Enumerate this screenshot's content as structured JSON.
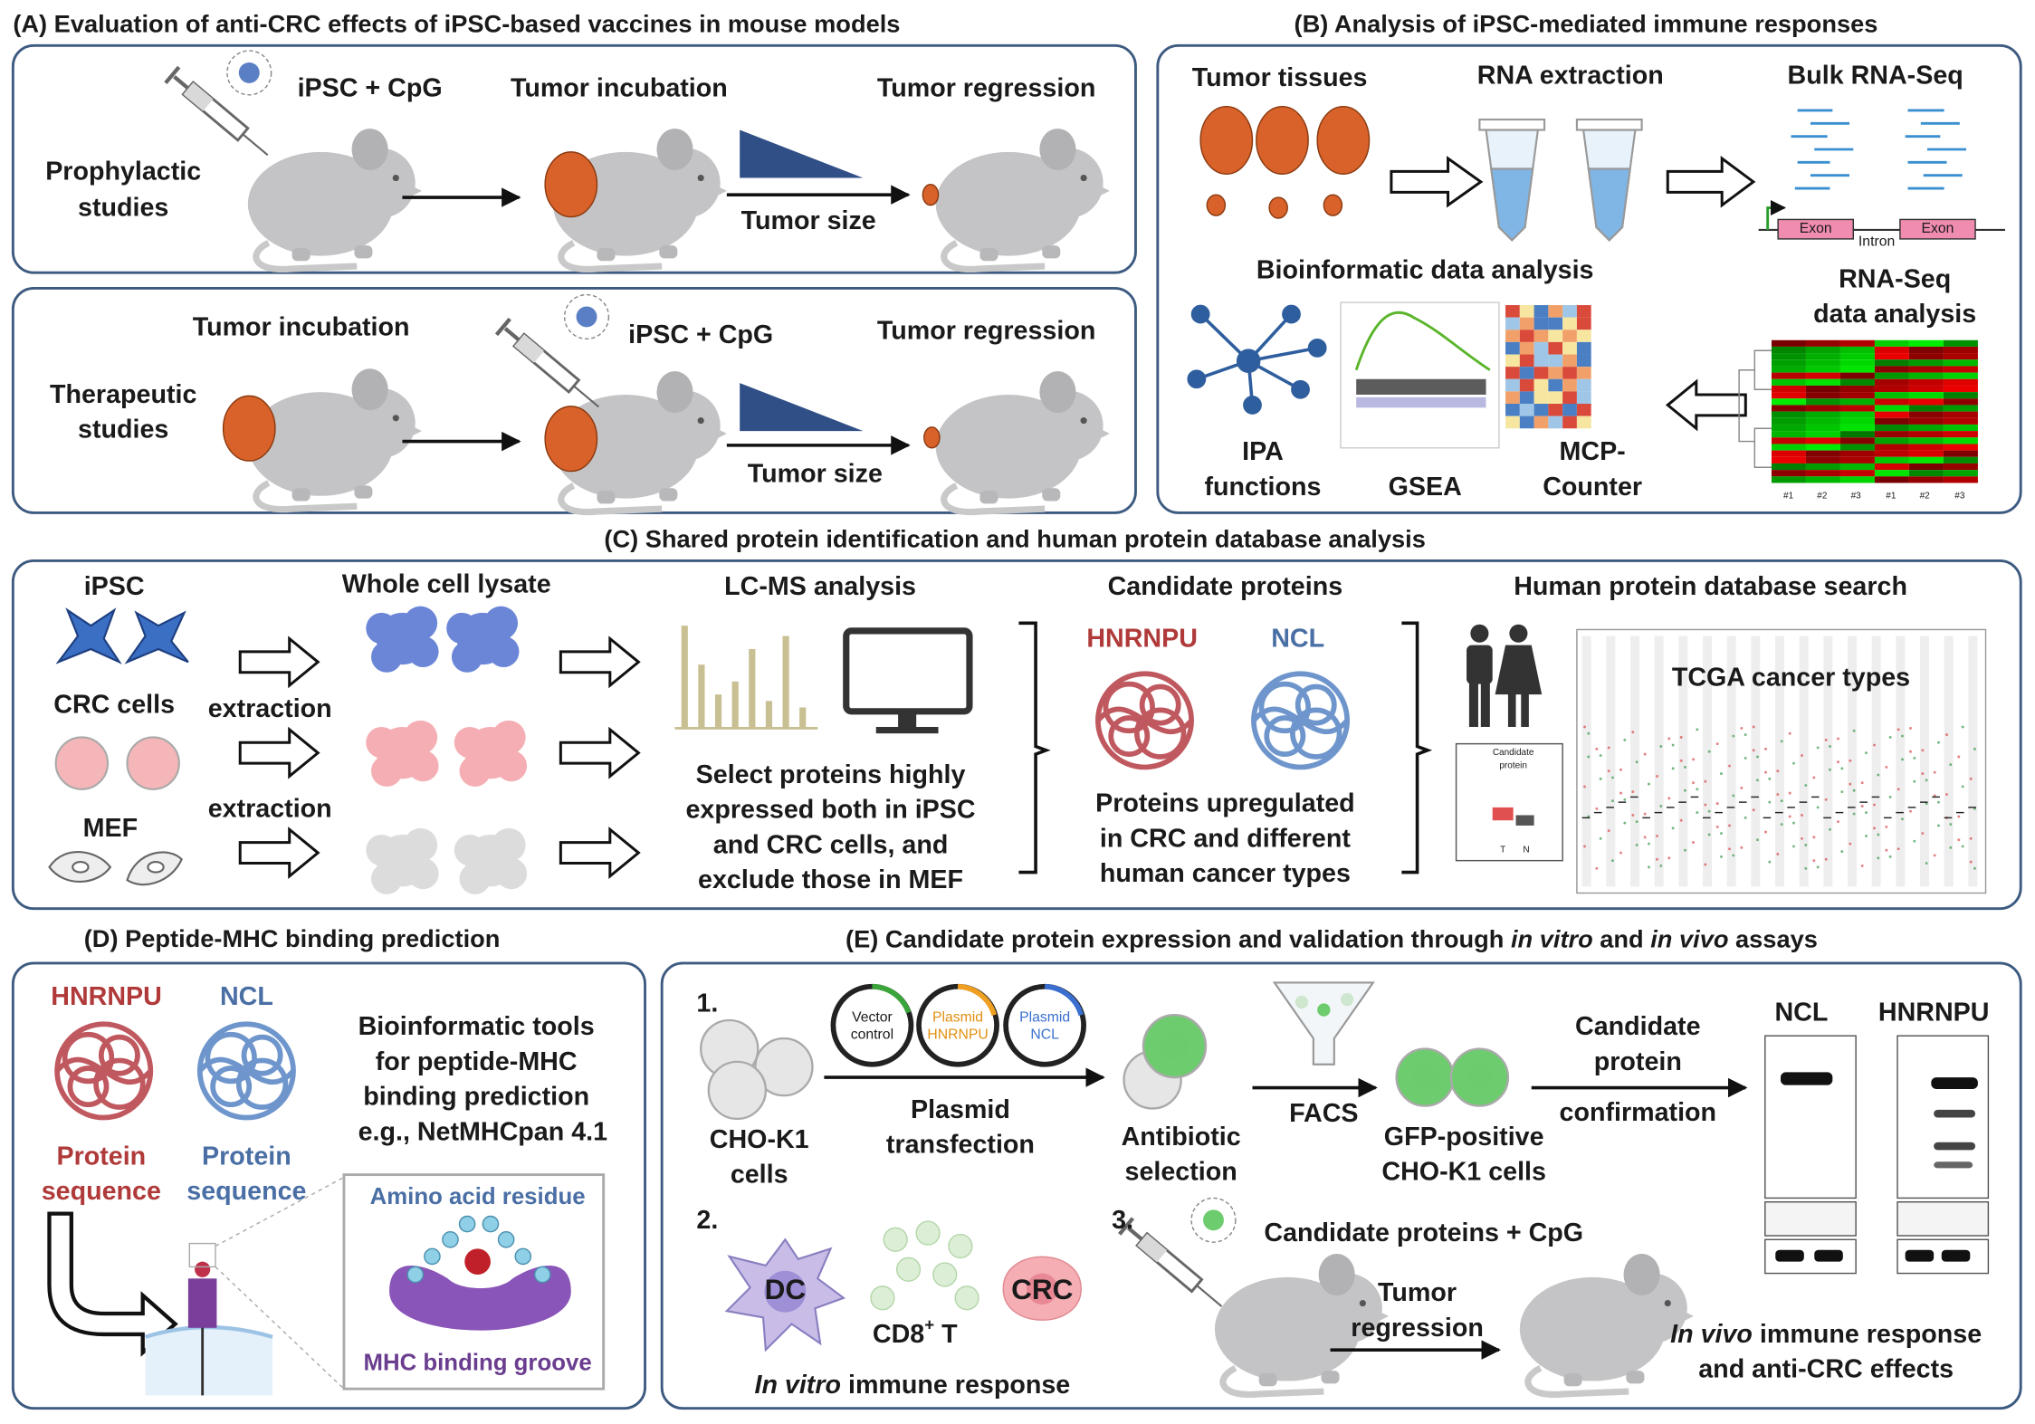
{
  "panel_a": {
    "title": "(A) Evaluation of anti-CRC effects of iPSC-based vaccines in mouse models",
    "prophylactic": {
      "label": [
        "Prophylactic",
        "studies"
      ],
      "injection": "iPSC + CpG",
      "incubation": "Tumor incubation",
      "regression": "Tumor regression",
      "tumor_size": "Tumor size"
    },
    "therapeutic": {
      "label": [
        "Therapeutic",
        "studies"
      ],
      "incubation": "Tumor incubation",
      "injection": "iPSC + CpG",
      "regression": "Tumor regression",
      "tumor_size": "Tumor size"
    }
  },
  "panel_b": {
    "title": "(B) Analysis of iPSC-mediated immune responses",
    "tumor_tissues": "Tumor tissues",
    "rna_extraction": "RNA extraction",
    "bulk_rna_seq": "Bulk RNA-Seq",
    "gene_labels": [
      "Exon",
      "Intron",
      "Exon"
    ],
    "bioinformatic": "Bioinformatic data analysis",
    "rna_seq_analysis": [
      "RNA-Seq",
      "data analysis"
    ],
    "ipa": [
      "IPA",
      "functions"
    ],
    "gsea": "GSEA",
    "mcp": [
      "MCP-",
      "Counter"
    ],
    "heatmap_columns": [
      "#1",
      "#2",
      "#3",
      "#1",
      "#2",
      "#3"
    ]
  },
  "panel_c": {
    "title": "(C) Shared protein identification and human protein database analysis",
    "sources": [
      "iPSC",
      "CRC cells",
      "MEF"
    ],
    "extraction": [
      "extraction",
      "extraction"
    ],
    "lysate": "Whole cell lysate",
    "lcms": "LC-MS analysis",
    "selection": [
      "Select proteins highly",
      "expressed both in iPSC",
      "and CRC cells, and",
      "exclude those in MEF"
    ],
    "candidates": "Candidate proteins",
    "protein_names": [
      "HNRNPU",
      "NCL"
    ],
    "upregulated": [
      "Proteins upregulated",
      "in CRC and different",
      "human cancer types"
    ],
    "database": "Human protein database search",
    "tcga": "TCGA cancer types",
    "boxplot": {
      "title": [
        "Candidate",
        "protein"
      ],
      "groups": [
        "T",
        "N"
      ]
    }
  },
  "panel_d": {
    "title": "(D) Peptide-MHC binding prediction",
    "protein_names": [
      "HNRNPU",
      "NCL"
    ],
    "tools": [
      "Bioinformatic tools",
      "for peptide-MHC",
      "binding prediction",
      "e.g., NetMHCpan 4.1"
    ],
    "sequence": [
      "Protein",
      "sequence"
    ],
    "residue": "Amino acid residue",
    "groove": "MHC binding groove"
  },
  "panel_e": {
    "title": [
      "(E) Candidate protein expression and validation through ",
      "in vitro",
      " and ",
      "in vivo",
      " assays"
    ],
    "steps": [
      "1.",
      "2.",
      "3."
    ],
    "cho": [
      "CHO-K1",
      "cells"
    ],
    "plasmids": [
      [
        "Vector",
        "control"
      ],
      [
        "Plasmid",
        "HNRNPU"
      ],
      [
        "Plasmid",
        "NCL"
      ]
    ],
    "transfection": [
      "Plasmid",
      "transfection"
    ],
    "antibiotic": [
      "Antibiotic",
      "selection"
    ],
    "facs": "FACS",
    "gfp": [
      "GFP-positive",
      "CHO-K1 cells"
    ],
    "confirmation": [
      "Candidate",
      "protein",
      "confirmation"
    ],
    "blots": [
      "NCL",
      "HNRNPU"
    ],
    "dc": "DC",
    "cd8": [
      "CD8",
      "+",
      " T"
    ],
    "crc": "CRC",
    "in_vitro": [
      "In vitro",
      " immune response"
    ],
    "injection": "Candidate proteins + CpG",
    "regression": [
      "Tumor",
      "regression"
    ],
    "in_vivo": [
      [
        "In vivo",
        " immune response"
      ],
      "and anti-CRC effects"
    ]
  }
}
